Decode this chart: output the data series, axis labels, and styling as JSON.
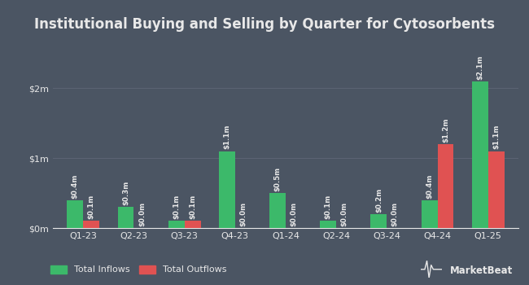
{
  "title": "Institutional Buying and Selling by Quarter for Cytosorbents",
  "quarters": [
    "Q1-23",
    "Q2-23",
    "Q3-23",
    "Q4-23",
    "Q1-24",
    "Q2-24",
    "Q3-24",
    "Q4-24",
    "Q1-25"
  ],
  "inflows": [
    0.4,
    0.3,
    0.1,
    1.1,
    0.5,
    0.1,
    0.2,
    0.4,
    2.1
  ],
  "outflows": [
    0.1,
    0.0,
    0.1,
    0.0,
    0.0,
    0.0,
    0.0,
    1.2,
    1.1
  ],
  "inflow_labels": [
    "$0.4m",
    "$0.3m",
    "$0.1m",
    "$1.1m",
    "$0.5m",
    "$0.1m",
    "$0.2m",
    "$0.4m",
    "$2.1m"
  ],
  "outflow_labels": [
    "$0.1m",
    "$0.0m",
    "$0.1m",
    "$0.0m",
    "$0.0m",
    "$0.0m",
    "$0.0m",
    "$1.2m",
    "$1.1m"
  ],
  "inflow_color": "#3cb96a",
  "outflow_color": "#e05252",
  "background_color": "#4b5563",
  "plot_bg_color": "#4b5563",
  "text_color": "#e8e8e8",
  "grid_color": "#5c6474",
  "bar_width": 0.32,
  "yticks": [
    0,
    1,
    2
  ],
  "ytick_labels": [
    "$0m",
    "$1m",
    "$2m"
  ],
  "ylim": [
    0,
    2.65
  ],
  "legend_inflow": "Total Inflows",
  "legend_outflow": "Total Outflows",
  "markerbeat_text": "⽏larketBeat",
  "label_fontsize": 6.2,
  "title_fontsize": 12,
  "tick_fontsize": 8
}
